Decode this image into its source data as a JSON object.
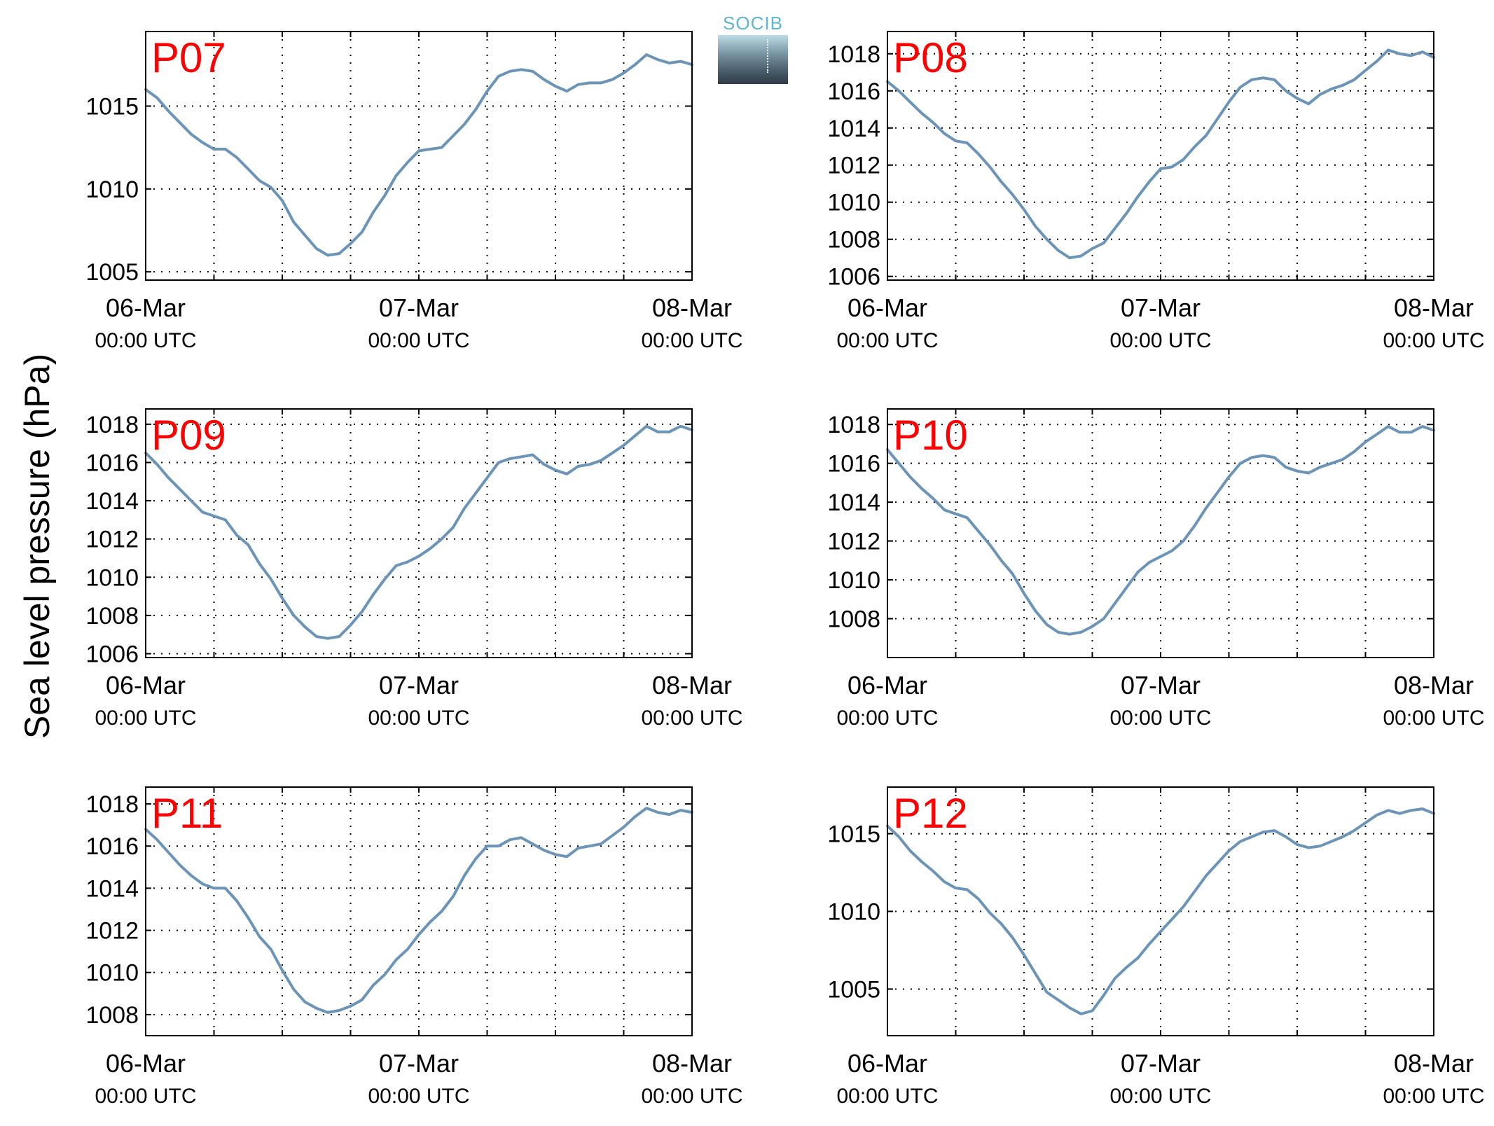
{
  "figure": {
    "ylabel": "Sea level pressure (hPa)",
    "logo_text": "SOCIB",
    "line_color": "#6b94b7",
    "label_color": "#ff0000"
  },
  "chart_data": [
    {
      "type": "line",
      "title": "P07",
      "x_tick_labels": [
        [
          "06-Mar",
          "00:00 UTC"
        ],
        [
          "07-Mar",
          "00:00 UTC"
        ],
        [
          "08-Mar",
          "00:00 UTC"
        ]
      ],
      "xlim_hours": [
        0,
        48
      ],
      "ylim": [
        1004.5,
        1019.5
      ],
      "yticks": [
        1005,
        1010,
        1015
      ],
      "grid": true,
      "series": [
        {
          "x": [
            0,
            1,
            2,
            3,
            4,
            5,
            6,
            7,
            8,
            9,
            10,
            11,
            12,
            13,
            14,
            15,
            16,
            17,
            18,
            19,
            20,
            21,
            22,
            23,
            24,
            25,
            26,
            27,
            28,
            29,
            30,
            31,
            32,
            33,
            34,
            35,
            36,
            37,
            38,
            39,
            40,
            41,
            42,
            43,
            44,
            45,
            46,
            47,
            48
          ],
          "y": [
            1016.0,
            1015.5,
            1014.7,
            1014.0,
            1013.3,
            1012.8,
            1012.4,
            1012.4,
            1011.9,
            1011.2,
            1010.5,
            1010.1,
            1009.3,
            1008.0,
            1007.2,
            1006.4,
            1006.0,
            1006.1,
            1006.7,
            1007.4,
            1008.6,
            1009.6,
            1010.8,
            1011.6,
            1012.3,
            1012.4,
            1012.5,
            1013.2,
            1013.9,
            1014.8,
            1015.9,
            1016.8,
            1017.1,
            1017.2,
            1017.1,
            1016.6,
            1016.2,
            1015.9,
            1016.3,
            1016.4,
            1016.4,
            1016.6,
            1017.0,
            1017.5,
            1018.1,
            1017.8,
            1017.6,
            1017.7,
            1017.5
          ]
        }
      ]
    },
    {
      "type": "line",
      "title": "P08",
      "x_tick_labels": [
        [
          "06-Mar",
          "00:00 UTC"
        ],
        [
          "07-Mar",
          "00:00 UTC"
        ],
        [
          "08-Mar",
          "00:00 UTC"
        ]
      ],
      "xlim_hours": [
        0,
        48
      ],
      "ylim": [
        1005.8,
        1019.2
      ],
      "yticks": [
        1006,
        1008,
        1010,
        1012,
        1014,
        1016,
        1018
      ],
      "grid": true,
      "series": [
        {
          "x": [
            0,
            1,
            2,
            3,
            4,
            5,
            6,
            7,
            8,
            9,
            10,
            11,
            12,
            13,
            14,
            15,
            16,
            17,
            18,
            19,
            20,
            21,
            22,
            23,
            24,
            25,
            26,
            27,
            28,
            29,
            30,
            31,
            32,
            33,
            34,
            35,
            36,
            37,
            38,
            39,
            40,
            41,
            42,
            43,
            44,
            45,
            46,
            47,
            48
          ],
          "y": [
            1016.5,
            1016.0,
            1015.4,
            1014.8,
            1014.3,
            1013.7,
            1013.3,
            1013.2,
            1012.6,
            1011.9,
            1011.1,
            1010.4,
            1009.6,
            1008.7,
            1008.0,
            1007.4,
            1007.0,
            1007.1,
            1007.5,
            1007.8,
            1008.6,
            1009.4,
            1010.3,
            1011.1,
            1011.8,
            1011.9,
            1012.3,
            1013.0,
            1013.6,
            1014.5,
            1015.4,
            1016.2,
            1016.6,
            1016.7,
            1016.6,
            1016.0,
            1015.6,
            1015.3,
            1015.8,
            1016.1,
            1016.3,
            1016.6,
            1017.1,
            1017.6,
            1018.2,
            1018.0,
            1017.9,
            1018.1,
            1017.8
          ]
        }
      ]
    },
    {
      "type": "line",
      "title": "P09",
      "x_tick_labels": [
        [
          "06-Mar",
          "00:00 UTC"
        ],
        [
          "07-Mar",
          "00:00 UTC"
        ],
        [
          "08-Mar",
          "00:00 UTC"
        ]
      ],
      "xlim_hours": [
        0,
        48
      ],
      "ylim": [
        1005.8,
        1018.8
      ],
      "yticks": [
        1006,
        1008,
        1010,
        1012,
        1014,
        1016,
        1018
      ],
      "grid": true,
      "series": [
        {
          "x": [
            0,
            1,
            2,
            3,
            4,
            5,
            6,
            7,
            8,
            9,
            10,
            11,
            12,
            13,
            14,
            15,
            16,
            17,
            18,
            19,
            20,
            21,
            22,
            23,
            24,
            25,
            26,
            27,
            28,
            29,
            30,
            31,
            32,
            33,
            34,
            35,
            36,
            37,
            38,
            39,
            40,
            41,
            42,
            43,
            44,
            45,
            46,
            47,
            48
          ],
          "y": [
            1016.5,
            1015.9,
            1015.2,
            1014.6,
            1014.0,
            1013.4,
            1013.2,
            1013.0,
            1012.2,
            1011.7,
            1010.7,
            1009.9,
            1008.9,
            1008.0,
            1007.4,
            1006.9,
            1006.8,
            1006.9,
            1007.5,
            1008.2,
            1009.1,
            1009.9,
            1010.6,
            1010.8,
            1011.1,
            1011.5,
            1012.0,
            1012.6,
            1013.6,
            1014.4,
            1015.2,
            1016.0,
            1016.2,
            1016.3,
            1016.4,
            1015.9,
            1015.6,
            1015.4,
            1015.8,
            1015.9,
            1016.1,
            1016.5,
            1016.9,
            1017.4,
            1017.9,
            1017.6,
            1017.6,
            1017.9,
            1017.7
          ]
        }
      ]
    },
    {
      "type": "line",
      "title": "P10",
      "x_tick_labels": [
        [
          "06-Mar",
          "00:00 UTC"
        ],
        [
          "07-Mar",
          "00:00 UTC"
        ],
        [
          "08-Mar",
          "00:00 UTC"
        ]
      ],
      "xlim_hours": [
        0,
        48
      ],
      "ylim": [
        1006.0,
        1018.8
      ],
      "yticks": [
        1008,
        1010,
        1012,
        1014,
        1016,
        1018
      ],
      "grid": true,
      "series": [
        {
          "x": [
            0,
            1,
            2,
            3,
            4,
            5,
            6,
            7,
            8,
            9,
            10,
            11,
            12,
            13,
            14,
            15,
            16,
            17,
            18,
            19,
            20,
            21,
            22,
            23,
            24,
            25,
            26,
            27,
            28,
            29,
            30,
            31,
            32,
            33,
            34,
            35,
            36,
            37,
            38,
            39,
            40,
            41,
            42,
            43,
            44,
            45,
            46,
            47,
            48
          ],
          "y": [
            1016.7,
            1016.0,
            1015.3,
            1014.7,
            1014.2,
            1013.6,
            1013.4,
            1013.2,
            1012.5,
            1011.8,
            1011.0,
            1010.3,
            1009.3,
            1008.4,
            1007.7,
            1007.3,
            1007.2,
            1007.3,
            1007.6,
            1008.0,
            1008.8,
            1009.6,
            1010.4,
            1010.9,
            1011.2,
            1011.5,
            1012.0,
            1012.8,
            1013.7,
            1014.5,
            1015.3,
            1016.0,
            1016.3,
            1016.4,
            1016.3,
            1015.8,
            1015.6,
            1015.5,
            1015.8,
            1016.0,
            1016.2,
            1016.6,
            1017.1,
            1017.5,
            1017.9,
            1017.6,
            1017.6,
            1017.9,
            1017.7
          ]
        }
      ]
    },
    {
      "type": "line",
      "title": "P11",
      "x_tick_labels": [
        [
          "06-Mar",
          "00:00 UTC"
        ],
        [
          "07-Mar",
          "00:00 UTC"
        ],
        [
          "08-Mar",
          "00:00 UTC"
        ]
      ],
      "xlim_hours": [
        0,
        48
      ],
      "ylim": [
        1007.0,
        1018.8
      ],
      "yticks": [
        1008,
        1010,
        1012,
        1014,
        1016,
        1018
      ],
      "grid": true,
      "series": [
        {
          "x": [
            0,
            1,
            2,
            3,
            4,
            5,
            6,
            7,
            8,
            9,
            10,
            11,
            12,
            13,
            14,
            15,
            16,
            17,
            18,
            19,
            20,
            21,
            22,
            23,
            24,
            25,
            26,
            27,
            28,
            29,
            30,
            31,
            32,
            33,
            34,
            35,
            36,
            37,
            38,
            39,
            40,
            41,
            42,
            43,
            44,
            45,
            46,
            47,
            48
          ],
          "y": [
            1016.8,
            1016.3,
            1015.7,
            1015.1,
            1014.6,
            1014.2,
            1014.0,
            1014.0,
            1013.4,
            1012.6,
            1011.7,
            1011.1,
            1010.1,
            1009.2,
            1008.6,
            1008.3,
            1008.1,
            1008.2,
            1008.4,
            1008.7,
            1009.4,
            1009.9,
            1010.6,
            1011.1,
            1011.8,
            1012.4,
            1012.9,
            1013.6,
            1014.6,
            1015.4,
            1016.0,
            1016.0,
            1016.3,
            1016.4,
            1016.1,
            1015.8,
            1015.6,
            1015.5,
            1015.9,
            1016.0,
            1016.1,
            1016.5,
            1016.9,
            1017.4,
            1017.8,
            1017.6,
            1017.5,
            1017.7,
            1017.6
          ]
        }
      ]
    },
    {
      "type": "line",
      "title": "P12",
      "x_tick_labels": [
        [
          "06-Mar",
          "00:00 UTC"
        ],
        [
          "07-Mar",
          "00:00 UTC"
        ],
        [
          "08-Mar",
          "00:00 UTC"
        ]
      ],
      "xlim_hours": [
        0,
        48
      ],
      "ylim": [
        1002.0,
        1018.0
      ],
      "yticks": [
        1005,
        1010,
        1015
      ],
      "grid": true,
      "series": [
        {
          "x": [
            0,
            1,
            2,
            3,
            4,
            5,
            6,
            7,
            8,
            9,
            10,
            11,
            12,
            13,
            14,
            15,
            16,
            17,
            18,
            19,
            20,
            21,
            22,
            23,
            24,
            25,
            26,
            27,
            28,
            29,
            30,
            31,
            32,
            33,
            34,
            35,
            36,
            37,
            38,
            39,
            40,
            41,
            42,
            43,
            44,
            45,
            46,
            47,
            48
          ],
          "y": [
            1015.5,
            1014.8,
            1013.9,
            1013.2,
            1012.6,
            1011.9,
            1011.5,
            1011.4,
            1010.8,
            1009.9,
            1009.2,
            1008.3,
            1007.2,
            1006.0,
            1004.8,
            1004.3,
            1003.8,
            1003.4,
            1003.6,
            1004.6,
            1005.7,
            1006.4,
            1007.0,
            1007.9,
            1008.7,
            1009.5,
            1010.3,
            1011.3,
            1012.3,
            1013.1,
            1013.9,
            1014.5,
            1014.8,
            1015.1,
            1015.2,
            1014.8,
            1014.3,
            1014.1,
            1014.2,
            1014.5,
            1014.8,
            1015.2,
            1015.7,
            1016.2,
            1016.5,
            1016.3,
            1016.5,
            1016.6,
            1016.3
          ]
        }
      ]
    }
  ]
}
